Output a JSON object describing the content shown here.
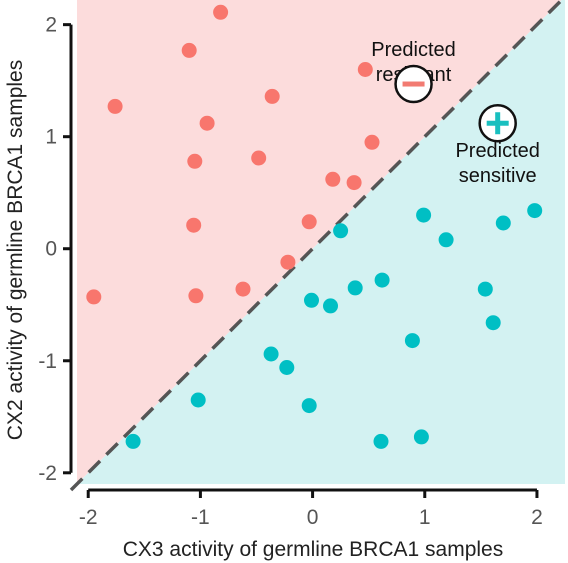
{
  "chart_data": {
    "type": "scatter",
    "title": "",
    "xlabel": "CX3 activity of germline BRCA1 samples",
    "ylabel": "CX2 activity of germline BRCA1 samples",
    "xlim": [
      -2.1,
      2.25
    ],
    "ylim": [
      -2.1,
      2.22
    ],
    "x_ticks": [
      -2,
      -1,
      0,
      1,
      2
    ],
    "y_ticks": [
      -2,
      -1,
      0,
      1,
      2
    ],
    "grid": false,
    "diagonal_line": {
      "style": "dashed",
      "color": "#555555",
      "from": [
        -2.1,
        -2.1
      ],
      "to": [
        2.25,
        2.25
      ]
    },
    "regions": [
      {
        "name": "Predicted resistant",
        "location": "above-diagonal",
        "color": "#fcdcdc"
      },
      {
        "name": "Predicted sensitive",
        "location": "below-diagonal",
        "color": "#d3f2f2"
      }
    ],
    "annotations": [
      {
        "text_lines": [
          "Predicted",
          "resistant"
        ],
        "symbol": "−",
        "symbol_color": "#f27b72",
        "anchor": [
          0.9,
          1.72
        ],
        "symbol_at": [
          0.9,
          1.47
        ]
      },
      {
        "text_lines": [
          "Predicted",
          "sensitive"
        ],
        "symbol": "+",
        "symbol_color": "#19bfbf",
        "anchor": [
          1.65,
          0.82
        ],
        "symbol_at": [
          1.65,
          1.12
        ]
      }
    ],
    "series": [
      {
        "color": "#f8766d",
        "points": [
          [
            -0.82,
            2.11
          ],
          [
            -1.1,
            1.77
          ],
          [
            0.47,
            1.6
          ],
          [
            -1.76,
            1.27
          ],
          [
            -0.36,
            1.36
          ],
          [
            -0.94,
            1.12
          ],
          [
            0.53,
            0.95
          ],
          [
            -1.05,
            0.78
          ],
          [
            -0.48,
            0.81
          ],
          [
            0.18,
            0.62
          ],
          [
            0.37,
            0.59
          ],
          [
            -1.06,
            0.21
          ],
          [
            -0.03,
            0.24
          ],
          [
            -0.22,
            -0.12
          ],
          [
            -1.95,
            -0.43
          ],
          [
            -1.04,
            -0.42
          ],
          [
            -0.62,
            -0.36
          ]
        ]
      },
      {
        "color": "#00bfc4",
        "points": [
          [
            0.25,
            0.16
          ],
          [
            0.99,
            0.3
          ],
          [
            1.98,
            0.34
          ],
          [
            1.7,
            0.23
          ],
          [
            1.19,
            0.08
          ],
          [
            -0.01,
            -0.46
          ],
          [
            0.16,
            -0.51
          ],
          [
            0.38,
            -0.35
          ],
          [
            0.62,
            -0.28
          ],
          [
            1.54,
            -0.36
          ],
          [
            1.61,
            -0.66
          ],
          [
            0.89,
            -0.82
          ],
          [
            -0.37,
            -0.94
          ],
          [
            -0.23,
            -1.06
          ],
          [
            -1.02,
            -1.35
          ],
          [
            -0.03,
            -1.4
          ],
          [
            -1.6,
            -1.72
          ],
          [
            0.61,
            -1.72
          ],
          [
            0.97,
            -1.68
          ]
        ]
      }
    ]
  }
}
